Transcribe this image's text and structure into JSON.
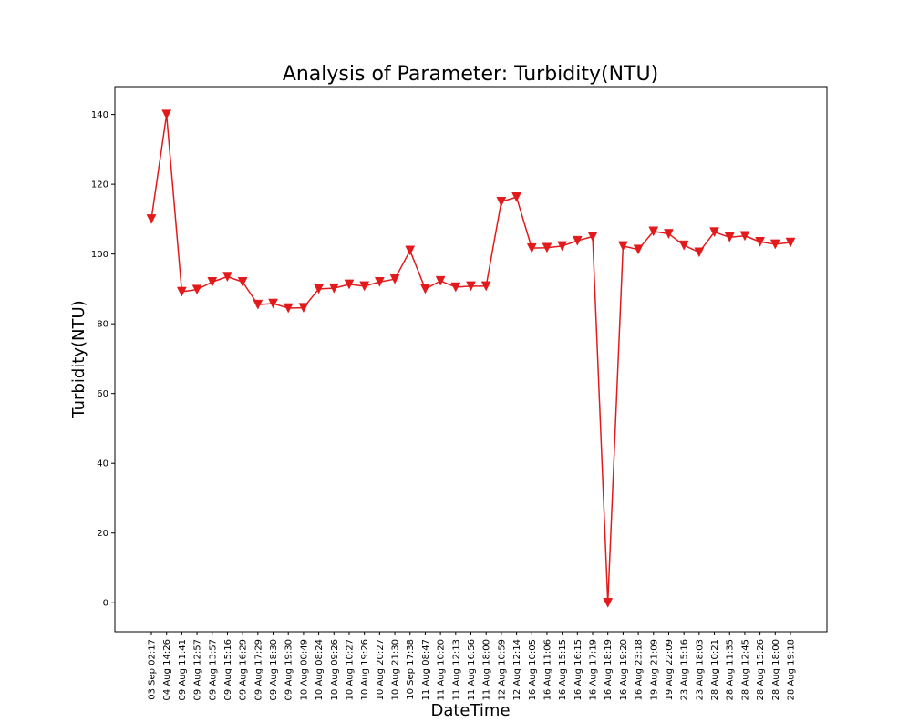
{
  "chart_data": {
    "type": "line",
    "title": "Analysis of Parameter: Turbidity(NTU)",
    "xlabel": "DateTime",
    "ylabel": "Turbidity(NTU)",
    "ylim": [
      -8.3,
      148
    ],
    "yticks": [
      0,
      20,
      40,
      60,
      80,
      100,
      120,
      140
    ],
    "grid": false,
    "legend": "none",
    "categories": [
      "03 Sep 02:17",
      "04 Aug 14:26",
      "09 Aug 11:41",
      "09 Aug 12:57",
      "09 Aug 13:57",
      "09 Aug 15:16",
      "09 Aug 16:29",
      "09 Aug 17:29",
      "09 Aug 18:30",
      "09 Aug 19:30",
      "10 Aug 00:49",
      "10 Aug 08:24",
      "10 Aug 09:26",
      "10 Aug 10:27",
      "10 Aug 19:26",
      "10 Aug 20:27",
      "10 Aug 21:30",
      "10 Sep 17:38",
      "11 Aug 08:47",
      "11 Aug 10:20",
      "11 Aug 12:13",
      "11 Aug 16:56",
      "11 Aug 18:00",
      "12 Aug 10:59",
      "12 Aug 12:14",
      "16 Aug 10:05",
      "16 Aug 11:06",
      "16 Aug 15:15",
      "16 Aug 16:15",
      "16 Aug 17:19",
      "16 Aug 18:19",
      "16 Aug 19:20",
      "16 Aug 23:18",
      "19 Aug 21:09",
      "19 Aug 22:09",
      "23 Aug 15:16",
      "23 Aug 18:03",
      "28 Aug 10:21",
      "28 Aug 11:35",
      "28 Aug 12:45",
      "28 Aug 15:26",
      "28 Aug 18:00",
      "28 Aug 19:18"
    ],
    "series": [
      {
        "color": "#e31a1c",
        "marker": "triangle-down",
        "values": [
          110,
          140,
          89.2,
          89.8,
          92,
          93.5,
          92,
          85.5,
          85.8,
          84.5,
          84.6,
          90,
          90.2,
          91.3,
          90.8,
          92,
          92.8,
          101,
          90,
          92.3,
          90.5,
          90.8,
          90.8,
          115,
          116.3,
          101.7,
          101.8,
          102.3,
          103.8,
          105,
          0,
          102.3,
          101.3,
          106.5,
          105.8,
          102.5,
          100.5,
          106.3,
          104.8,
          105.2,
          103.5,
          102.8,
          103.3
        ]
      }
    ]
  }
}
